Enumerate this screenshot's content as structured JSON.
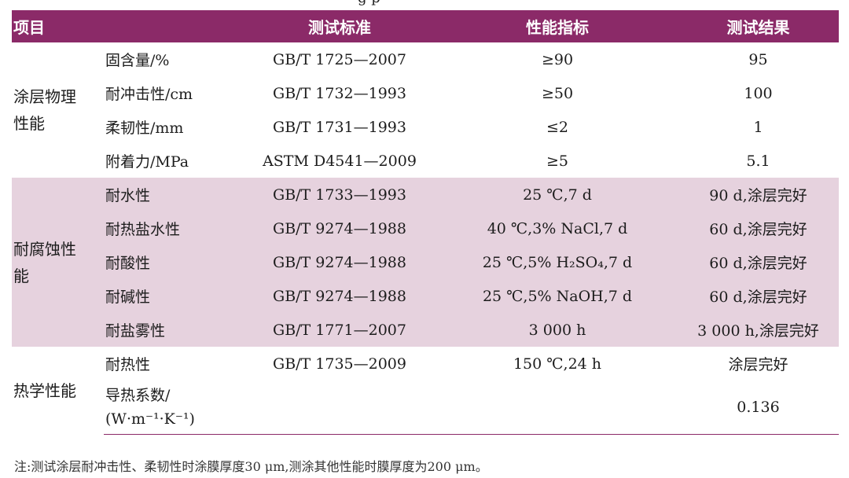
{
  "cut_title": "g p",
  "header": {
    "item": "项目",
    "standard": "测试标准",
    "spec": "性能指标",
    "result": "测试结果"
  },
  "groups": [
    {
      "name": "涂层物理性能",
      "rows": [
        {
          "property": "固含量/%",
          "standard": "GB/T 1725—2007",
          "spec": "≥90",
          "result": "95"
        },
        {
          "property": "耐冲击性/cm",
          "standard": "GB/T 1732—1993",
          "spec": "≥50",
          "result": "100"
        },
        {
          "property": "柔韧性/mm",
          "standard": "GB/T 1731—1993",
          "spec": "≤2",
          "result": "1"
        },
        {
          "property": "附着力/MPa",
          "standard": "ASTM D4541—2009",
          "spec": "≥5",
          "result": "5.1"
        }
      ]
    },
    {
      "name": "耐腐蚀性能",
      "rows": [
        {
          "property": "耐水性",
          "standard": "GB/T 1733—1993",
          "spec": "25 ℃,7 d",
          "result": "90 d,涂层完好"
        },
        {
          "property": "耐热盐水性",
          "standard": "GB/T 9274—1988",
          "spec": "40 ℃,3% NaCl,7 d",
          "result": "60 d,涂层完好"
        },
        {
          "property": "耐酸性",
          "standard": "GB/T 9274—1988",
          "spec": "25 ℃,5% H₂SO₄,7 d",
          "result": "60 d,涂层完好"
        },
        {
          "property": "耐碱性",
          "standard": "GB/T 9274—1988",
          "spec": "25 ℃,5% NaOH,7 d",
          "result": "60 d,涂层完好"
        },
        {
          "property": "耐盐雾性",
          "standard": "GB/T 1771—2007",
          "spec": "3 000 h",
          "result": "3 000 h,涂层完好"
        }
      ]
    },
    {
      "name": "热学性能",
      "rows": [
        {
          "property": "耐热性",
          "standard": "GB/T 1735—2009",
          "spec": "150 ℃,24 h",
          "result": "涂层完好"
        },
        {
          "property_line1": "导热系数/",
          "property_line2": "(W·m⁻¹·K⁻¹)",
          "standard": "",
          "spec": "",
          "result": "0.136"
        }
      ]
    }
  ],
  "note": "注:测试涂层耐冲击性、柔韧性时涂膜厚度30 μm,测涂其他性能时膜厚度为200 μm。",
  "colors": {
    "header_bg": "#8b2a68",
    "alt_row_bg": "#e6d2de"
  }
}
